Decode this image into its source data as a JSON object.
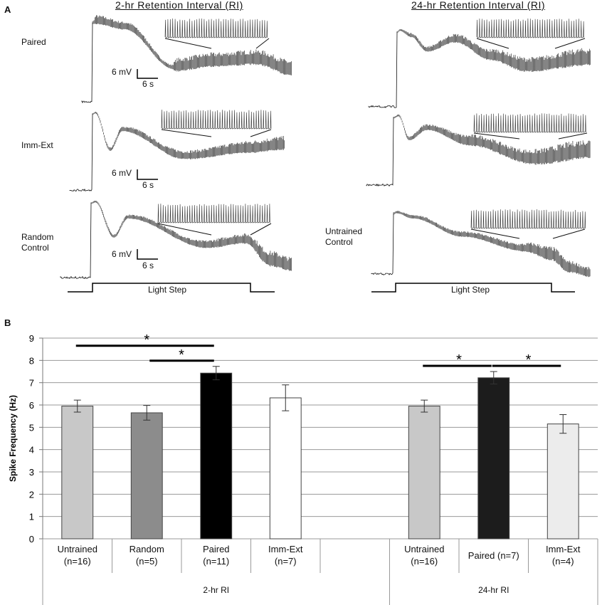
{
  "panel_a": {
    "label": "A",
    "columns": [
      "2-hr Retention Interval (RI)",
      "24-hr Retention Interval (RI)"
    ],
    "rows_left": [
      "Paired",
      "Imm-Ext",
      "Random\nControl"
    ],
    "rows_right": [
      "Untrained\nControl"
    ],
    "scale_voltage": "6 mV",
    "scale_time": "6 s",
    "stimulus": "Light Step"
  },
  "chart_data": {
    "type": "bar",
    "panel_label": "B",
    "ylabel": "Spike Frequency (Hz)",
    "categories": [
      "Untrained\n(n=16)",
      "Random\n(n=5)",
      "Paired\n(n=11)",
      "Imm-Ext\n(n=7)",
      null,
      "Untrained\n(n=16)",
      "Paired (n=7)",
      "Imm-Ext\n(n=4)"
    ],
    "values": [
      5.95,
      5.65,
      7.43,
      6.32,
      null,
      5.95,
      7.22,
      5.15
    ],
    "errors": [
      0.27,
      0.33,
      0.3,
      0.58,
      null,
      0.27,
      0.28,
      0.42
    ],
    "colors": [
      "#c8c8c8",
      "#8c8c8c",
      "#000000",
      "#ffffff",
      null,
      "#c8c8c8",
      "#1c1c1c",
      "#ececec"
    ],
    "groups": [
      {
        "label": "2-hr RI",
        "span": 5
      },
      {
        "label": "24-hr RI",
        "span": 3
      }
    ],
    "annotations": [
      {
        "text": "*",
        "between": [
          0,
          2
        ]
      },
      {
        "text": "*",
        "between": [
          1,
          2
        ]
      },
      {
        "text": "*",
        "between": [
          5,
          6
        ]
      },
      {
        "text": "*",
        "between": [
          6,
          7
        ]
      }
    ],
    "ylim": [
      0,
      9
    ],
    "yticks": [
      0,
      1,
      2,
      3,
      4,
      5,
      6,
      7,
      8,
      9
    ],
    "grid": true
  }
}
